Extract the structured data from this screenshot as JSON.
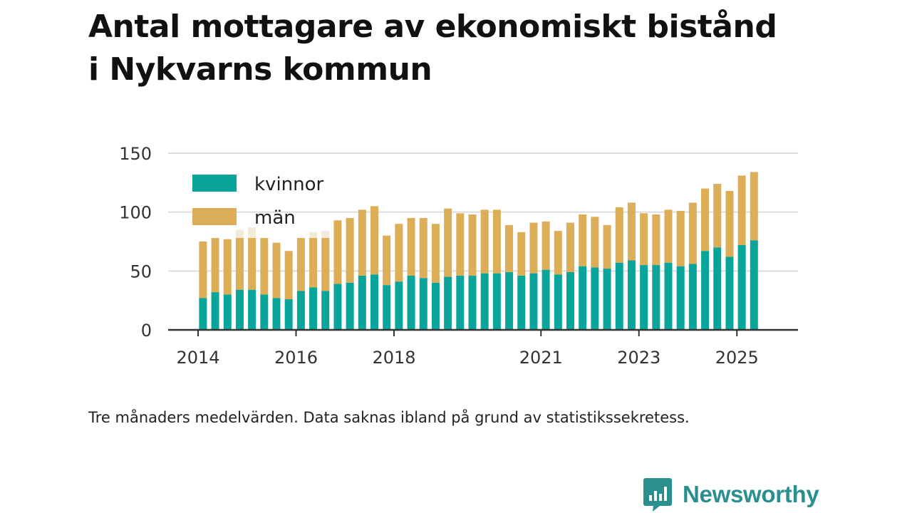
{
  "title_lines": [
    "Antal mottagare av ekonomiskt bistånd",
    "i Nykvarns kommun"
  ],
  "footnote": "Tre månaders medelvärden. Data saknas ibland på grund av statistikssekretess.",
  "brand": {
    "name": "Newsworthy",
    "color": "#2a8f8f",
    "logo_icon": "bar-chart-speech-bubble-icon"
  },
  "colors": {
    "kvinnor": "#0aa59a",
    "man": "#dcae58",
    "grid": "#dddddd",
    "axis": "#333333"
  },
  "chart_data": {
    "type": "bar",
    "stacked": true,
    "title": "Antal mottagare av ekonomiskt bistånd i Nykvarns kommun",
    "xlabel": "",
    "ylabel": "",
    "ylim": [
      0,
      150
    ],
    "yticks": [
      0,
      50,
      100,
      150
    ],
    "grid": true,
    "legend_position": "top-left",
    "x_start_year": 2014.1,
    "x_step_years": 0.25,
    "xlim": [
      2014.0,
      2026.0
    ],
    "x_ticks": [
      {
        "label": "2014",
        "pos": 2014.0
      },
      {
        "label": "2016",
        "pos": 2016.0
      },
      {
        "label": "2018",
        "pos": 2018.0
      },
      {
        "label": "2021",
        "pos": 2021.0
      },
      {
        "label": "2023",
        "pos": 2023.0
      },
      {
        "label": "2025",
        "pos": 2025.0
      }
    ],
    "series": [
      {
        "name": "kvinnor",
        "values": [
          27,
          32,
          30,
          34,
          34,
          30,
          27,
          26,
          33,
          36,
          33,
          39,
          40,
          46,
          47,
          38,
          41,
          46,
          44,
          40,
          45,
          46,
          46,
          48,
          48,
          49,
          46,
          48,
          51,
          47,
          49,
          54,
          53,
          52,
          57,
          59,
          55,
          55,
          57,
          54,
          56,
          67,
          70,
          62,
          72,
          76
        ]
      },
      {
        "name": "män",
        "values": [
          48,
          46,
          47,
          44,
          44,
          48,
          47,
          41,
          45,
          42,
          45,
          54,
          55,
          56,
          58,
          42,
          49,
          49,
          51,
          50,
          58,
          53,
          52,
          54,
          54,
          40,
          37,
          43,
          41,
          37,
          42,
          44,
          43,
          37,
          47,
          49,
          44,
          43,
          45,
          47,
          52,
          53,
          54,
          56,
          59,
          58
        ]
      }
    ],
    "ghost_bars": [
      {
        "index": 3,
        "total": 85
      },
      {
        "index": 4,
        "total": 87
      },
      {
        "index": 9,
        "total": 83
      },
      {
        "index": 10,
        "total": 84
      }
    ]
  }
}
